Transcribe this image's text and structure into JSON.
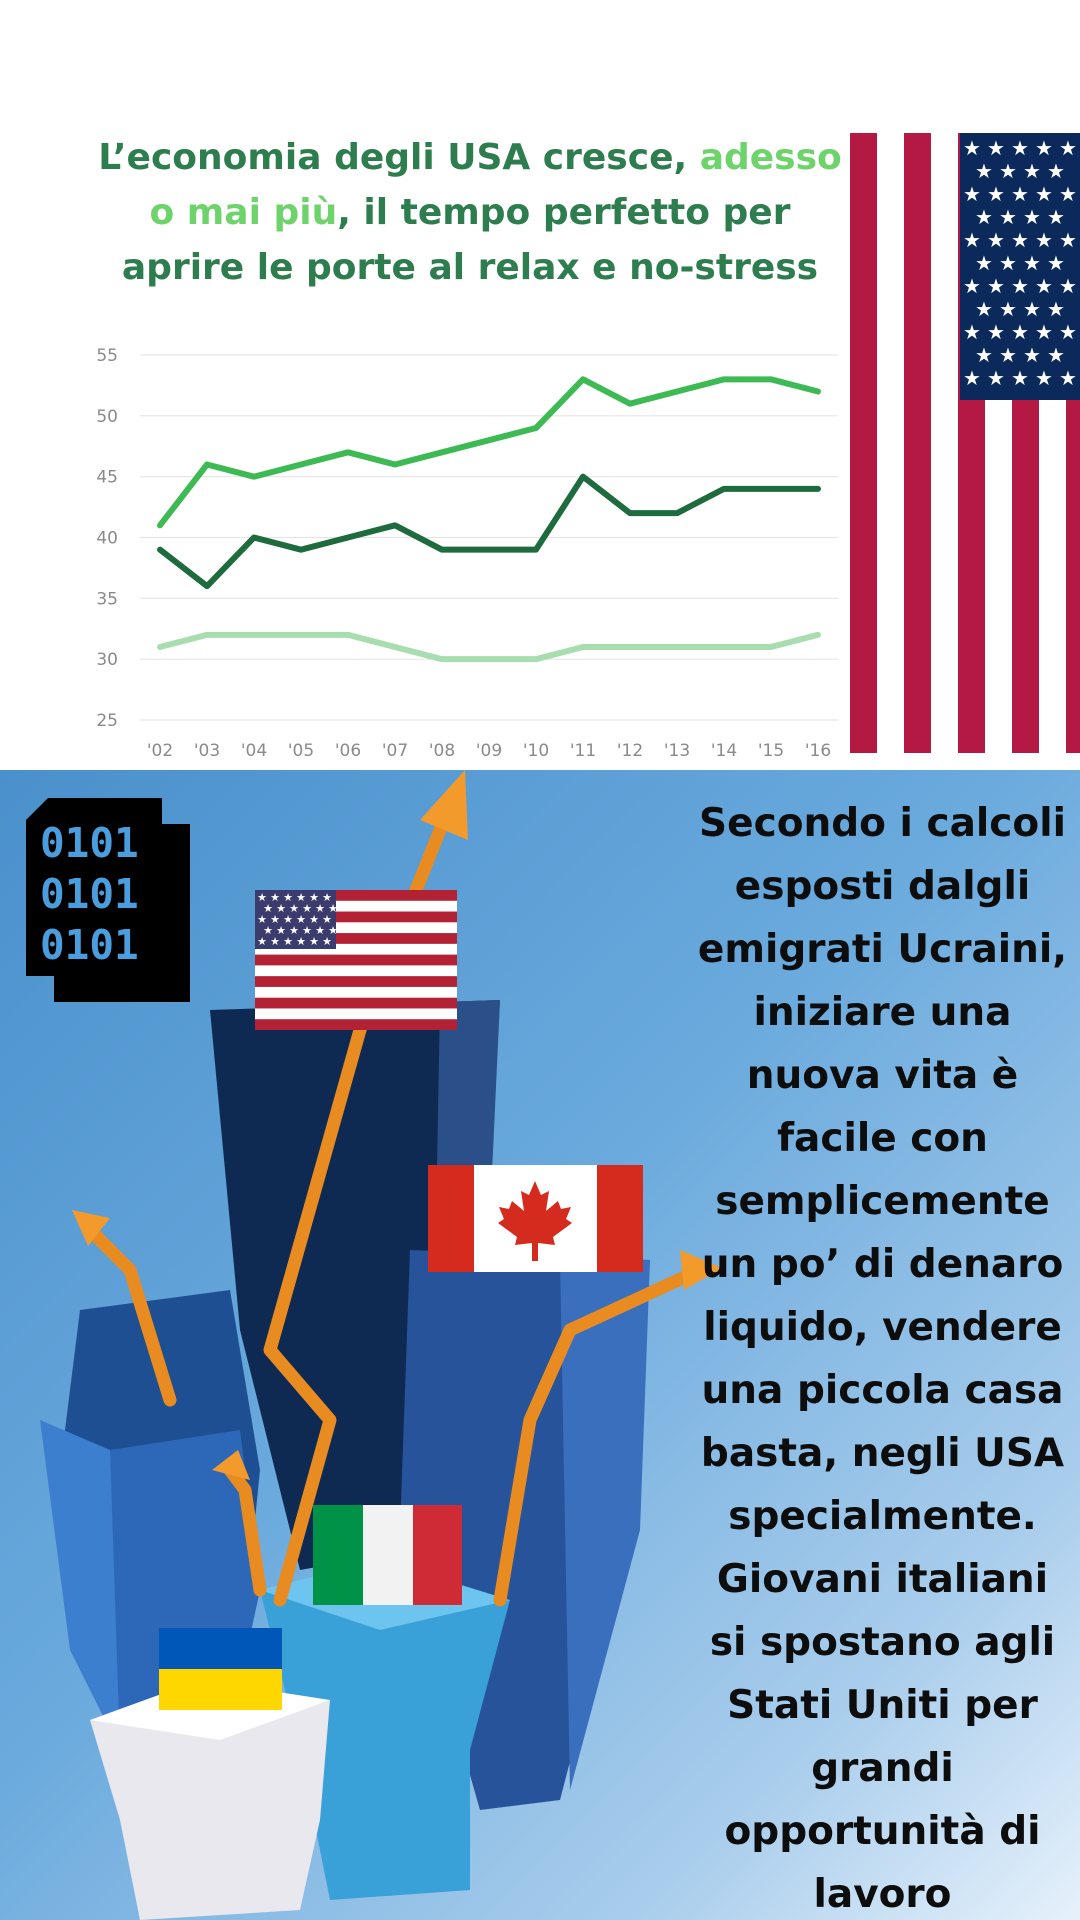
{
  "headline": {
    "part1": "L’economia degli USA cresce, ",
    "highlight": "adesso o mai più",
    "part2": ", il tempo perfetto per aprire le porte al relax e no-stress"
  },
  "chart_data": {
    "type": "line",
    "x": [
      "'02",
      "'03",
      "'04",
      "'05",
      "'06",
      "'07",
      "'08",
      "'09",
      "'10",
      "'11",
      "'12",
      "'13",
      "'14",
      "'15",
      "'16"
    ],
    "y_ticks": [
      25,
      30,
      35,
      40,
      45,
      50,
      55
    ],
    "ylim": [
      25,
      55
    ],
    "grid": true,
    "series": [
      {
        "color": "#3dba54",
        "values": [
          41,
          46,
          45,
          46,
          47,
          46,
          47,
          48,
          49,
          53,
          51,
          52,
          53,
          53,
          52
        ]
      },
      {
        "color": "#1e6b3e",
        "values": [
          39,
          36,
          40,
          39,
          40,
          41,
          39,
          39,
          39,
          45,
          42,
          42,
          44,
          44,
          44
        ]
      },
      {
        "color": "#a8ddb0",
        "values": [
          31,
          32,
          32,
          32,
          32,
          31,
          30,
          30,
          30,
          31,
          31,
          31,
          31,
          31,
          32
        ]
      }
    ]
  },
  "binary_icon": {
    "text": "0101\n0101\n0101",
    "icon": "binary-code-icon"
  },
  "flags": [
    "usa-flag",
    "canada-flag",
    "italy-flag",
    "ukraine-flag"
  ],
  "body_text": "Secondo i calcoli esposti dalgli emigrati Ucraini, iniziare una nuova vita è facile con semplicemente un po’ di denaro liquido, vendere una piccola casa basta, negli USA specialmente. Giovani italiani si spostano agli Stati Uniti per grandi opportunità di lavoro",
  "colors": {
    "headline_dark": "#2e7d4f",
    "headline_light": "#6fd36b",
    "flag_red": "#b22234",
    "flag_blue": "#3c3b6e"
  }
}
